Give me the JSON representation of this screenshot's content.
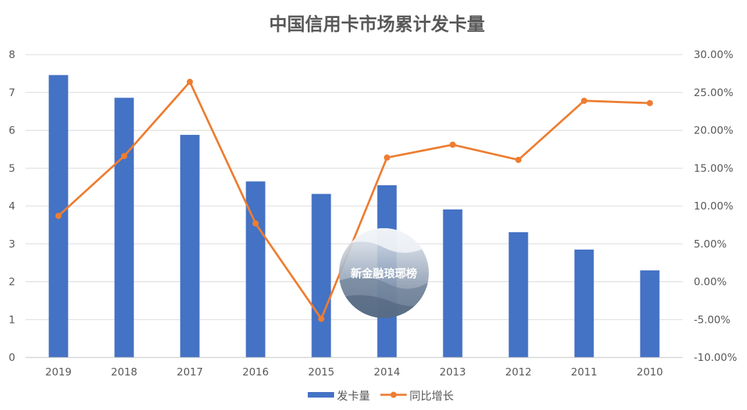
{
  "chart_data": {
    "type": "bar",
    "title": "中国信用卡市场累计发卡量",
    "categories": [
      "2019",
      "2018",
      "2017",
      "2016",
      "2015",
      "2014",
      "2013",
      "2012",
      "2011",
      "2010"
    ],
    "series": [
      {
        "name": "发卡量",
        "type": "bar",
        "axis": "left",
        "color": "#4472C4",
        "values": [
          7.46,
          6.86,
          5.88,
          4.65,
          4.32,
          4.55,
          3.91,
          3.31,
          2.85,
          2.3
        ]
      },
      {
        "name": "同比增长",
        "type": "line",
        "axis": "right",
        "color": "#ED7D31",
        "values": [
          0.087,
          0.166,
          0.264,
          0.077,
          -0.049,
          0.164,
          0.181,
          0.161,
          0.239,
          0.236
        ]
      }
    ],
    "ylim_left": [
      0,
      8
    ],
    "yticks_left": [
      "0",
      "1",
      "2",
      "3",
      "4",
      "5",
      "6",
      "7",
      "8"
    ],
    "ylim_right": [
      -0.1,
      0.3
    ],
    "yticks_right": [
      "-10.00%",
      "-5.00%",
      "0.00%",
      "5.00%",
      "10.00%",
      "15.00%",
      "20.00%",
      "25.00%",
      "30.00%"
    ],
    "grid": true,
    "legend_position": "bottom",
    "colors": {
      "grid": "#D9D9D9",
      "axis": "#BFBFBF",
      "text": "#595959"
    }
  },
  "watermark": {
    "text": "新金融琅琊榜"
  }
}
